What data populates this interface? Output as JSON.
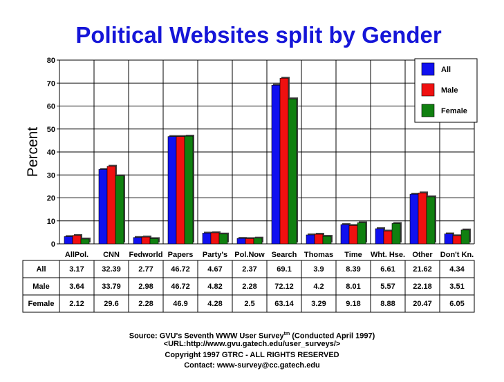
{
  "chart_data": {
    "type": "bar",
    "title": "Political Websites split by Gender",
    "ylabel": "Percent",
    "ylim": [
      0,
      80
    ],
    "yticks": [
      "0",
      "10",
      "20",
      "30",
      "40",
      "50",
      "60",
      "70",
      "80"
    ],
    "grid": true,
    "legend_position": "top-right",
    "categories": [
      "AllPol.",
      "CNN",
      "Fedworld",
      "Papers",
      "Party's",
      "Pol.Now",
      "Search",
      "Thomas",
      "Time",
      "Wht. Hse.",
      "Other",
      "Don't Kn."
    ],
    "series": [
      {
        "name": "All",
        "color": "#1010f0",
        "values": [
          3.17,
          32.39,
          2.77,
          46.72,
          4.67,
          2.37,
          69.1,
          3.9,
          8.39,
          6.61,
          21.62,
          4.34
        ],
        "labels": [
          "3.17",
          "32.39",
          "2.77",
          "46.72",
          "4.67",
          "2.37",
          "69.1",
          "3.9",
          "8.39",
          "6.61",
          "21.62",
          "4.34"
        ]
      },
      {
        "name": "Male",
        "color": "#f01010",
        "values": [
          3.64,
          33.79,
          2.98,
          46.72,
          4.82,
          2.28,
          72.12,
          4.2,
          8.01,
          5.57,
          22.18,
          3.51
        ],
        "labels": [
          "3.64",
          "33.79",
          "2.98",
          "46.72",
          "4.82",
          "2.28",
          "72.12",
          "4.2",
          "8.01",
          "5.57",
          "22.18",
          "3.51"
        ]
      },
      {
        "name": "Female",
        "color": "#108010",
        "values": [
          2.12,
          29.6,
          2.28,
          46.9,
          4.28,
          2.5,
          63.14,
          3.29,
          9.18,
          8.88,
          20.47,
          6.05
        ],
        "labels": [
          "2.12",
          "29.6",
          "2.28",
          "46.9",
          "4.28",
          "2.5",
          "63.14",
          "3.29",
          "9.18",
          "8.88",
          "20.47",
          "6.05"
        ]
      }
    ]
  },
  "footer": {
    "source_prefix": "Source: GVU's Seventh WWW User Survey",
    "source_sup": "tm",
    "source_suffix": " (Conducted April 1997)",
    "url": "<URL:http://www.gvu.gatech.edu/user_surveys/>",
    "copyright": "Copyright 1997 GTRC - ALL RIGHTS RESERVED",
    "contact": "Contact: www-survey@cc.gatech.edu"
  }
}
